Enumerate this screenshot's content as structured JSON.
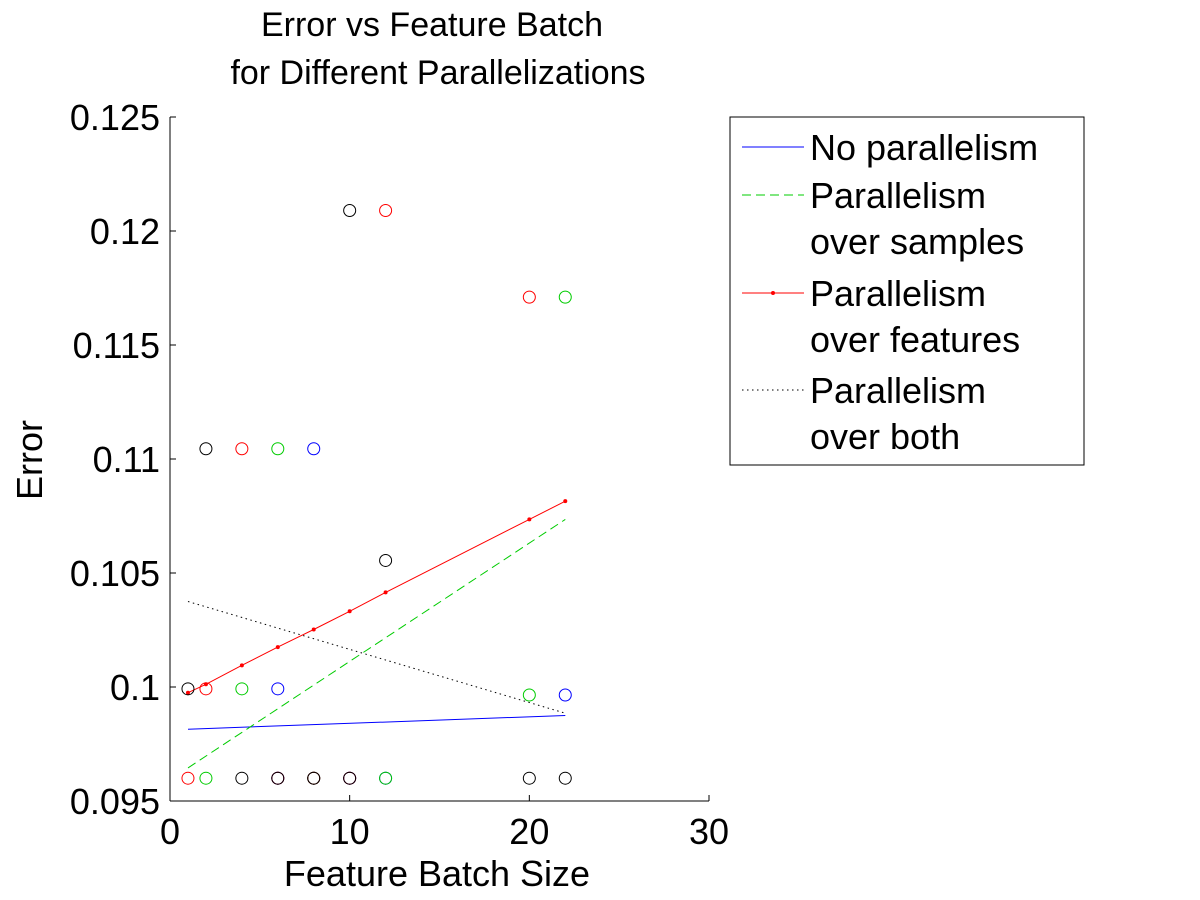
{
  "chart_data": {
    "type": "scatter",
    "title_lines": [
      "Error vs Feature Batch",
      "for Different Parallelizations"
    ],
    "xlabel": "Feature Batch Size",
    "ylabel": "Error",
    "xlim": [
      0,
      30
    ],
    "ylim": [
      0.095,
      0.125
    ],
    "x_ticks": [
      "0",
      "10",
      "20",
      "30"
    ],
    "y_ticks": [
      "0.095",
      "0.1",
      "0.105",
      "0.11",
      "0.115",
      "0.12",
      "0.125"
    ],
    "grid": false,
    "legend_position": "top-right, outside plot",
    "legend": [
      {
        "lines": [
          "No parallelism"
        ],
        "color": "#0000ff",
        "style": "solid"
      },
      {
        "lines": [
          "Parallelism",
          "over samples"
        ],
        "color": "#00cc00",
        "style": "dashed"
      },
      {
        "lines": [
          "Parallelism",
          "over features"
        ],
        "color": "#ff0000",
        "style": "solid-dot"
      },
      {
        "lines": [
          "Parallelism",
          "over both"
        ],
        "color": "#000000",
        "style": "dotted"
      }
    ],
    "series": [
      {
        "color": "#0000ff",
        "points": [
          [
            6,
            0.09992
          ],
          [
            8,
            0.11045
          ],
          [
            22,
            0.09965
          ],
          [
            6,
            0.096
          ],
          [
            8,
            0.096
          ],
          [
            10,
            0.096
          ],
          [
            12,
            0.096
          ]
        ],
        "fit": [
          [
            1,
            0.09815
          ],
          [
            22,
            0.09875
          ]
        ]
      },
      {
        "color": "#00cc00",
        "points": [
          [
            2,
            0.096
          ],
          [
            4,
            0.09992
          ],
          [
            6,
            0.11045
          ],
          [
            8,
            0.096
          ],
          [
            12,
            0.096
          ],
          [
            20,
            0.09965
          ],
          [
            22,
            0.1171
          ]
        ],
        "fit": [
          [
            1,
            0.09645
          ],
          [
            22,
            0.10735
          ]
        ]
      },
      {
        "color": "#ff0000",
        "points": [
          [
            1,
            0.096
          ],
          [
            2,
            0.09992
          ],
          [
            4,
            0.11045
          ],
          [
            6,
            0.096
          ],
          [
            8,
            0.096
          ],
          [
            10,
            0.096
          ],
          [
            12,
            0.1209
          ],
          [
            20,
            0.1171
          ]
        ],
        "fit": [
          [
            1,
            0.09975
          ],
          [
            2,
            0.10012
          ],
          [
            4,
            0.10095
          ],
          [
            6,
            0.10175
          ],
          [
            8,
            0.10252
          ],
          [
            10,
            0.10332
          ],
          [
            12,
            0.10415
          ],
          [
            20,
            0.10735
          ],
          [
            22,
            0.10815
          ]
        ]
      },
      {
        "color": "#000000",
        "points": [
          [
            1,
            0.09992
          ],
          [
            2,
            0.11045
          ],
          [
            4,
            0.096
          ],
          [
            6,
            0.096
          ],
          [
            8,
            0.096
          ],
          [
            10,
            0.096
          ],
          [
            10,
            0.1209
          ],
          [
            12,
            0.10555
          ],
          [
            20,
            0.096
          ],
          [
            22,
            0.096
          ]
        ],
        "fit": [
          [
            1,
            0.10375
          ],
          [
            22,
            0.09885
          ]
        ]
      }
    ]
  }
}
